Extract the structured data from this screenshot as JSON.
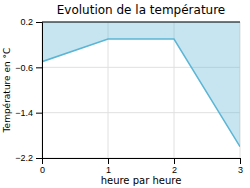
{
  "chart_data": {
    "type": "area",
    "title": "Evolution de la température",
    "xlabel": "heure par heure",
    "ylabel": "Température en °C",
    "x": [
      0,
      1,
      2,
      3
    ],
    "values": [
      -0.5,
      -0.1,
      -0.1,
      -2.0
    ],
    "color": "#5bb5d5",
    "xlim": [
      0,
      3
    ],
    "ylim": [
      -2.2,
      0.2
    ],
    "xticks": [
      0,
      1,
      2,
      3
    ],
    "yticks": [
      0.2,
      -0.6,
      -1.4,
      -2.2
    ],
    "grid": true
  }
}
